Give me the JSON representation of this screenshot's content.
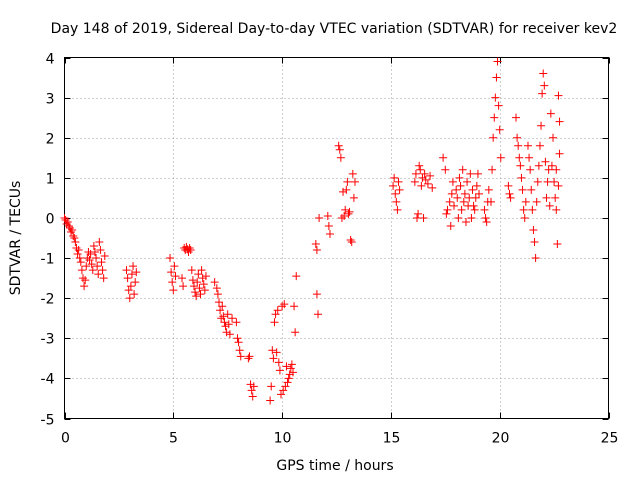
{
  "chart_data": {
    "type": "scatter",
    "title": "Day 148 of 2019, Sidereal Day-to-day VTEC variation (SDTVAR) for receiver kev2",
    "xlabel": "GPS time / hours",
    "ylabel": "SDTVAR / TECUs",
    "xlim": [
      0,
      25
    ],
    "ylim": [
      -5,
      4
    ],
    "xticks": [
      0,
      5,
      10,
      15,
      20,
      25
    ],
    "yticks": [
      -5,
      -4,
      -3,
      -2,
      -1,
      0,
      1,
      2,
      3,
      4
    ],
    "grid": true,
    "marker": "plus",
    "color": "#ff0000",
    "series": [
      {
        "name": "SDTVAR",
        "points": [
          [
            0.0,
            0.0
          ],
          [
            0.05,
            -0.05
          ],
          [
            0.1,
            -0.15
          ],
          [
            0.15,
            -0.1
          ],
          [
            0.2,
            -0.2
          ],
          [
            0.25,
            -0.25
          ],
          [
            0.3,
            -0.35
          ],
          [
            0.35,
            -0.3
          ],
          [
            0.4,
            -0.45
          ],
          [
            0.45,
            -0.5
          ],
          [
            0.5,
            -0.6
          ],
          [
            0.55,
            -0.75
          ],
          [
            0.6,
            -0.9
          ],
          [
            0.65,
            -0.8
          ],
          [
            0.7,
            -1.0
          ],
          [
            0.75,
            -1.1
          ],
          [
            0.8,
            -1.3
          ],
          [
            0.85,
            -1.5
          ],
          [
            0.9,
            -1.7
          ],
          [
            0.95,
            -1.55
          ],
          [
            1.0,
            -1.2
          ],
          [
            1.05,
            -1.0
          ],
          [
            1.1,
            -0.85
          ],
          [
            1.15,
            -1.05
          ],
          [
            1.2,
            -0.9
          ],
          [
            1.25,
            -1.15
          ],
          [
            1.3,
            -1.3
          ],
          [
            1.35,
            -0.7
          ],
          [
            1.4,
            -0.85
          ],
          [
            1.45,
            -1.0
          ],
          [
            1.5,
            -1.2
          ],
          [
            1.55,
            -1.4
          ],
          [
            1.6,
            -0.6
          ],
          [
            1.65,
            -0.8
          ],
          [
            1.7,
            -1.1
          ],
          [
            1.75,
            -1.3
          ],
          [
            1.8,
            -1.5
          ],
          [
            1.85,
            -0.95
          ],
          [
            2.85,
            -1.3
          ],
          [
            2.9,
            -1.5
          ],
          [
            2.95,
            -1.8
          ],
          [
            3.0,
            -2.0
          ],
          [
            3.05,
            -1.7
          ],
          [
            3.1,
            -1.4
          ],
          [
            3.15,
            -1.2
          ],
          [
            3.2,
            -1.9
          ],
          [
            3.25,
            -1.6
          ],
          [
            3.3,
            -1.35
          ],
          [
            4.85,
            -1.0
          ],
          [
            4.9,
            -1.35
          ],
          [
            4.95,
            -1.6
          ],
          [
            5.0,
            -1.8
          ],
          [
            5.05,
            -1.2
          ],
          [
            5.1,
            -1.45
          ],
          [
            5.4,
            -1.5
          ],
          [
            5.45,
            -1.7
          ],
          [
            5.5,
            -0.75
          ],
          [
            5.55,
            -0.8
          ],
          [
            5.6,
            -0.72
          ],
          [
            5.65,
            -0.78
          ],
          [
            5.7,
            -0.85
          ],
          [
            5.75,
            -0.75
          ],
          [
            5.8,
            -0.8
          ],
          [
            5.85,
            -1.3
          ],
          [
            5.9,
            -1.55
          ],
          [
            5.95,
            -1.7
          ],
          [
            6.0,
            -1.85
          ],
          [
            6.05,
            -1.95
          ],
          [
            6.1,
            -1.6
          ],
          [
            6.15,
            -1.4
          ],
          [
            6.2,
            -1.75
          ],
          [
            6.25,
            -1.9
          ],
          [
            6.3,
            -1.3
          ],
          [
            6.35,
            -1.5
          ],
          [
            6.4,
            -1.65
          ],
          [
            6.45,
            -1.8
          ],
          [
            6.5,
            -1.45
          ],
          [
            6.9,
            -1.6
          ],
          [
            7.0,
            -1.75
          ],
          [
            7.05,
            -1.9
          ],
          [
            7.1,
            -2.1
          ],
          [
            7.15,
            -2.3
          ],
          [
            7.2,
            -2.5
          ],
          [
            7.25,
            -2.2
          ],
          [
            7.3,
            -2.45
          ],
          [
            7.35,
            -2.6
          ],
          [
            7.4,
            -2.7
          ],
          [
            7.45,
            -2.85
          ],
          [
            7.5,
            -2.4
          ],
          [
            7.55,
            -2.65
          ],
          [
            7.6,
            -2.9
          ],
          [
            7.7,
            -2.5
          ],
          [
            7.9,
            -2.6
          ],
          [
            7.95,
            -3.0
          ],
          [
            8.0,
            -3.1
          ],
          [
            8.05,
            -3.3
          ],
          [
            8.1,
            -3.45
          ],
          [
            8.45,
            -3.5
          ],
          [
            8.5,
            -3.45
          ],
          [
            8.55,
            -4.15
          ],
          [
            8.6,
            -4.3
          ],
          [
            8.65,
            -4.45
          ],
          [
            8.7,
            -4.2
          ],
          [
            9.45,
            -4.55
          ],
          [
            9.5,
            -4.2
          ],
          [
            9.55,
            -3.3
          ],
          [
            9.6,
            -3.5
          ],
          [
            9.65,
            -2.6
          ],
          [
            9.7,
            -2.4
          ],
          [
            9.75,
            -3.35
          ],
          [
            9.8,
            -2.3
          ],
          [
            9.85,
            -3.6
          ],
          [
            9.9,
            -3.8
          ],
          [
            9.95,
            -4.4
          ],
          [
            10.0,
            -2.2
          ],
          [
            10.05,
            -4.3
          ],
          [
            10.1,
            -2.15
          ],
          [
            10.15,
            -4.2
          ],
          [
            10.2,
            -3.7
          ],
          [
            10.25,
            -4.1
          ],
          [
            10.3,
            -4.0
          ],
          [
            10.35,
            -3.9
          ],
          [
            10.4,
            -3.75
          ],
          [
            10.45,
            -3.65
          ],
          [
            10.5,
            -3.85
          ],
          [
            10.55,
            -2.2
          ],
          [
            10.6,
            -2.85
          ],
          [
            10.65,
            -1.45
          ],
          [
            11.55,
            -0.65
          ],
          [
            11.6,
            -0.8
          ],
          [
            11.6,
            -1.9
          ],
          [
            11.65,
            -2.4
          ],
          [
            11.7,
            0.0
          ],
          [
            12.1,
            0.05
          ],
          [
            12.15,
            -0.2
          ],
          [
            12.2,
            -0.4
          ],
          [
            12.6,
            1.8
          ],
          [
            12.65,
            1.7
          ],
          [
            12.7,
            1.5
          ],
          [
            12.75,
            0.0
          ],
          [
            12.8,
            0.65
          ],
          [
            12.85,
            0.05
          ],
          [
            12.9,
            0.2
          ],
          [
            12.95,
            0.7
          ],
          [
            13.0,
            0.9
          ],
          [
            13.05,
            0.1
          ],
          [
            13.1,
            0.15
          ],
          [
            13.15,
            -0.55
          ],
          [
            13.2,
            -0.6
          ],
          [
            13.25,
            1.1
          ],
          [
            13.3,
            0.5
          ],
          [
            13.35,
            0.9
          ],
          [
            15.1,
            0.8
          ],
          [
            15.15,
            1.0
          ],
          [
            15.2,
            0.6
          ],
          [
            15.25,
            0.4
          ],
          [
            15.3,
            0.2
          ],
          [
            15.35,
            0.9
          ],
          [
            15.4,
            0.7
          ],
          [
            16.1,
            0.9
          ],
          [
            16.15,
            1.1
          ],
          [
            16.2,
            0.0
          ],
          [
            16.25,
            0.1
          ],
          [
            16.3,
            1.3
          ],
          [
            16.35,
            1.2
          ],
          [
            16.4,
            0.8
          ],
          [
            16.45,
            1.0
          ],
          [
            16.5,
            0.0
          ],
          [
            16.55,
            1.1
          ],
          [
            16.6,
            0.95
          ],
          [
            16.7,
            0.85
          ],
          [
            16.8,
            1.05
          ],
          [
            16.9,
            0.75
          ],
          [
            17.4,
            1.5
          ],
          [
            17.5,
            1.2
          ],
          [
            17.55,
            0.1
          ],
          [
            17.6,
            0.2
          ],
          [
            17.7,
            0.4
          ],
          [
            17.75,
            -0.2
          ],
          [
            17.8,
            0.6
          ],
          [
            17.85,
            0.9
          ],
          [
            17.9,
            0.3
          ],
          [
            18.0,
            0.7
          ],
          [
            18.05,
            0.5
          ],
          [
            18.1,
            0.0
          ],
          [
            18.15,
            1.0
          ],
          [
            18.2,
            0.8
          ],
          [
            18.25,
            0.2
          ],
          [
            18.3,
            1.2
          ],
          [
            18.35,
            0.4
          ],
          [
            18.4,
            0.6
          ],
          [
            18.45,
            -0.1
          ],
          [
            18.5,
            0.9
          ],
          [
            18.55,
            0.3
          ],
          [
            18.6,
            0.5
          ],
          [
            18.65,
            1.1
          ],
          [
            18.7,
            0.0
          ],
          [
            18.75,
            0.7
          ],
          [
            18.8,
            0.3
          ],
          [
            18.85,
            0.2
          ],
          [
            18.9,
            0.5
          ],
          [
            18.95,
            0.8
          ],
          [
            19.0,
            1.1
          ],
          [
            19.05,
            0.6
          ],
          [
            19.3,
            0.2
          ],
          [
            19.35,
            0.0
          ],
          [
            19.4,
            -0.1
          ],
          [
            19.45,
            0.4
          ],
          [
            19.5,
            0.7
          ],
          [
            19.6,
            0.4
          ],
          [
            19.65,
            1.2
          ],
          [
            19.7,
            2.0
          ],
          [
            19.75,
            2.5
          ],
          [
            19.8,
            3.0
          ],
          [
            19.85,
            3.5
          ],
          [
            19.9,
            3.9
          ],
          [
            19.95,
            2.8
          ],
          [
            20.0,
            2.2
          ],
          [
            20.05,
            1.5
          ],
          [
            20.4,
            0.8
          ],
          [
            20.45,
            0.6
          ],
          [
            20.5,
            0.5
          ],
          [
            20.75,
            2.5
          ],
          [
            20.8,
            2.0
          ],
          [
            20.85,
            1.8
          ],
          [
            20.9,
            1.5
          ],
          [
            20.95,
            1.3
          ],
          [
            21.0,
            1.0
          ],
          [
            21.05,
            0.7
          ],
          [
            21.1,
            0.2
          ],
          [
            21.15,
            0.0
          ],
          [
            21.2,
            0.4
          ],
          [
            21.3,
            1.8
          ],
          [
            21.35,
            1.5
          ],
          [
            21.4,
            1.2
          ],
          [
            21.45,
            0.7
          ],
          [
            21.5,
            0.2
          ],
          [
            21.55,
            -0.3
          ],
          [
            21.6,
            -0.6
          ],
          [
            21.65,
            -1.0
          ],
          [
            21.7,
            0.4
          ],
          [
            21.75,
            0.9
          ],
          [
            21.8,
            1.3
          ],
          [
            21.85,
            1.8
          ],
          [
            21.9,
            2.3
          ],
          [
            21.95,
            3.1
          ],
          [
            22.0,
            3.6
          ],
          [
            22.05,
            3.3
          ],
          [
            22.1,
            1.4
          ],
          [
            22.15,
            0.5
          ],
          [
            22.2,
            0.9
          ],
          [
            22.25,
            1.2
          ],
          [
            22.3,
            0.3
          ],
          [
            22.35,
            2.6
          ],
          [
            22.4,
            1.3
          ],
          [
            22.45,
            2.0
          ],
          [
            22.5,
            0.9
          ],
          [
            22.55,
            0.5
          ],
          [
            22.6,
            0.2
          ],
          [
            22.6,
            1.2
          ],
          [
            22.65,
            -0.65
          ],
          [
            22.7,
            3.05
          ],
          [
            22.7,
            0.8
          ],
          [
            22.75,
            1.6
          ],
          [
            22.75,
            2.4
          ]
        ]
      }
    ]
  }
}
